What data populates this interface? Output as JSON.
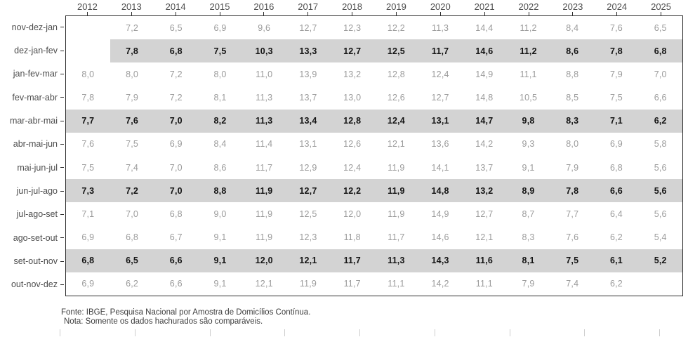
{
  "chart_data": {
    "type": "table",
    "description": "Heatmap-style table of quarterly moving-average rates (hachured rows are comparable quarters)",
    "columns": [
      "2012",
      "2013",
      "2014",
      "2015",
      "2016",
      "2017",
      "2018",
      "2019",
      "2020",
      "2021",
      "2022",
      "2023",
      "2024",
      "2025"
    ],
    "rows": [
      {
        "label": "nov-dez-jan",
        "shaded": false,
        "values": [
          "",
          "7,2",
          "6,5",
          "6,9",
          "9,6",
          "12,7",
          "12,3",
          "12,2",
          "11,3",
          "14,4",
          "11,2",
          "8,4",
          "7,6",
          "6,5"
        ]
      },
      {
        "label": "dez-jan-fev",
        "shaded": true,
        "values": [
          "",
          "7,8",
          "6,8",
          "7,5",
          "10,3",
          "13,3",
          "12,7",
          "12,5",
          "11,7",
          "14,6",
          "11,2",
          "8,6",
          "7,8",
          "6,8"
        ]
      },
      {
        "label": "jan-fev-mar",
        "shaded": false,
        "values": [
          "8,0",
          "8,0",
          "7,2",
          "8,0",
          "11,0",
          "13,9",
          "13,2",
          "12,8",
          "12,4",
          "14,9",
          "11,1",
          "8,8",
          "7,9",
          "7,0"
        ]
      },
      {
        "label": "fev-mar-abr",
        "shaded": false,
        "values": [
          "7,8",
          "7,9",
          "7,2",
          "8,1",
          "11,3",
          "13,7",
          "13,0",
          "12,6",
          "12,7",
          "14,8",
          "10,5",
          "8,5",
          "7,5",
          "6,6"
        ]
      },
      {
        "label": "mar-abr-mai",
        "shaded": true,
        "values": [
          "7,7",
          "7,6",
          "7,0",
          "8,2",
          "11,3",
          "13,4",
          "12,8",
          "12,4",
          "13,1",
          "14,7",
          "9,8",
          "8,3",
          "7,1",
          "6,2"
        ]
      },
      {
        "label": "abr-mai-jun",
        "shaded": false,
        "values": [
          "7,6",
          "7,5",
          "6,9",
          "8,4",
          "11,4",
          "13,1",
          "12,6",
          "12,1",
          "13,6",
          "14,2",
          "9,3",
          "8,0",
          "6,9",
          "5,8"
        ]
      },
      {
        "label": "mai-jun-jul",
        "shaded": false,
        "values": [
          "7,5",
          "7,4",
          "7,0",
          "8,6",
          "11,7",
          "12,9",
          "12,4",
          "11,9",
          "14,1",
          "13,7",
          "9,1",
          "7,9",
          "6,8",
          "5,6"
        ]
      },
      {
        "label": "jun-jul-ago",
        "shaded": true,
        "values": [
          "7,3",
          "7,2",
          "7,0",
          "8,8",
          "11,9",
          "12,7",
          "12,2",
          "11,9",
          "14,8",
          "13,2",
          "8,9",
          "7,8",
          "6,6",
          "5,6"
        ]
      },
      {
        "label": "jul-ago-set",
        "shaded": false,
        "values": [
          "7,1",
          "7,0",
          "6,8",
          "9,0",
          "11,9",
          "12,5",
          "12,0",
          "11,9",
          "14,9",
          "12,7",
          "8,7",
          "7,7",
          "6,4",
          "5,6"
        ]
      },
      {
        "label": "ago-set-out",
        "shaded": false,
        "values": [
          "6,9",
          "6,8",
          "6,7",
          "9,1",
          "11,9",
          "12,3",
          "11,8",
          "11,7",
          "14,6",
          "12,1",
          "8,3",
          "7,6",
          "6,2",
          "5,4"
        ]
      },
      {
        "label": "set-out-nov",
        "shaded": true,
        "values": [
          "6,8",
          "6,5",
          "6,6",
          "9,1",
          "12,0",
          "12,1",
          "11,7",
          "11,3",
          "14,3",
          "11,6",
          "8,1",
          "7,5",
          "6,1",
          "5,2"
        ]
      },
      {
        "label": "out-nov-dez",
        "shaded": false,
        "values": [
          "6,9",
          "6,2",
          "6,6",
          "9,1",
          "12,1",
          "11,9",
          "11,7",
          "11,1",
          "14,2",
          "11,1",
          "7,9",
          "7,4",
          "6,2",
          ""
        ]
      }
    ],
    "legend": "Somente os dados hachurados (linhas sombreadas) são comparáveis"
  },
  "footer": {
    "fonte": "Fonte: IBGE, Pesquisa Nacional por Amostra de Domicílios Contínua.",
    "nota": "Nota: Somente os dados hachurados são comparáveis."
  },
  "colors": {
    "band": "#d3d3d3",
    "value_text": "#9b9b9b",
    "value_text_bold": "#141414",
    "axis_text": "#4d4d4d",
    "panel_border": "#2e2e2e",
    "faint_tick": "#cdcdcd"
  }
}
